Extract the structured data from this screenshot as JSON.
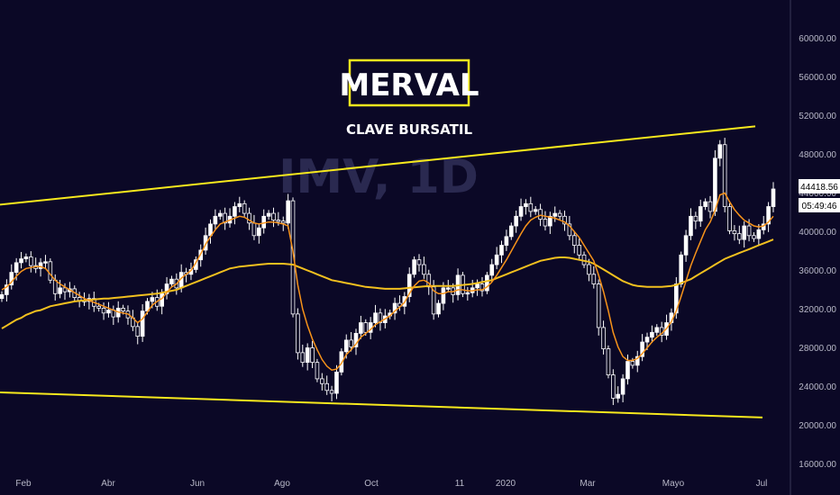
{
  "chart_data": {
    "type": "candlestick",
    "title": "MERVAL",
    "subtitle": "CLAVE BURSATIL",
    "watermark": "IMV, 1D",
    "current_price_label": "44418.56",
    "countdown_label": "05:49:46",
    "y_ticks": [
      "60000.00",
      "56000.00",
      "52000.00",
      "48000.00",
      "44000.00",
      "40000.00",
      "36000.00",
      "32000.00",
      "28000.00",
      "24000.00",
      "20000.00",
      "16000.00"
    ],
    "ylim": [
      16000,
      62000
    ],
    "x_ticks": [
      "Feb",
      "Abr",
      "Jun",
      "Ago",
      "Oct",
      "11",
      "2020",
      "Mar",
      "Mayo",
      "Jul"
    ],
    "grid": false,
    "colors": {
      "background": "#0b0826",
      "candles": "#ffffff",
      "ma_fast": "#f7931a",
      "ma_slow": "#f2c01f",
      "channel": "#f7e91d",
      "label_bg": "#ffffff"
    },
    "close_series": [
      33500,
      34500,
      35800,
      36800,
      37200,
      37400,
      36500,
      36200,
      36800,
      36900,
      35000,
      33600,
      34200,
      33800,
      34100,
      33200,
      32900,
      32800,
      33100,
      32300,
      32100,
      31600,
      31900,
      31200,
      32100,
      31800,
      31100,
      30200,
      29200,
      31800,
      32800,
      33200,
      32300,
      33600,
      34600,
      35100,
      34200,
      35800,
      35600,
      36100,
      37100,
      38100,
      39600,
      40800,
      41600,
      41900,
      40900,
      41600,
      42600,
      42900,
      41900,
      40900,
      39600,
      40400,
      41600,
      41900,
      41200,
      41100,
      40900,
      43200,
      31500,
      27500,
      26500,
      28000,
      26500,
      24800,
      24300,
      23600,
      23300,
      25500,
      27600,
      28800,
      28100,
      29500,
      30600,
      29600,
      30600,
      31600,
      30600,
      31300,
      31600,
      32600,
      32300,
      33300,
      35600,
      37100,
      36600,
      35600,
      34300,
      31500,
      32600,
      34200,
      34200,
      33500,
      35500,
      33600,
      33700,
      34200,
      34600,
      33900,
      35500,
      36600,
      37600,
      38600,
      39500,
      40600,
      41600,
      42600,
      42900,
      42100,
      42300,
      41300,
      40600,
      41600,
      41900,
      41600,
      40800,
      39600,
      38600,
      37600,
      36600,
      35600,
      34600,
      30100,
      27900,
      25200,
      22800,
      23200,
      24800,
      26600,
      26200,
      27100,
      28600,
      29100,
      29600,
      30100,
      29300,
      30600,
      31600,
      34600,
      37600,
      39600,
      41600,
      41100,
      42600,
      43100,
      42100,
      47600,
      49000,
      42600,
      40100,
      39800,
      39200,
      40600,
      39600,
      39300,
      40200,
      40800,
      42600,
      44418
    ],
    "ma_fast": [
      34000,
      34300,
      34800,
      35400,
      35900,
      36200,
      36300,
      36400,
      36400,
      36200,
      35600,
      35000,
      34600,
      34300,
      34000,
      33700,
      33400,
      33100,
      32900,
      32700,
      32500,
      32300,
      32100,
      31900,
      31700,
      31600,
      31500,
      31100,
      30600,
      31000,
      31700,
      32400,
      32800,
      33100,
      33700,
      34300,
      34600,
      35200,
      35600,
      36000,
      36800,
      37700,
      38700,
      39500,
      40200,
      40800,
      41000,
      41200,
      41400,
      41600,
      41500,
      41200,
      40900,
      40800,
      40900,
      41000,
      41000,
      40900,
      40800,
      40600,
      38000,
      34500,
      32000,
      30300,
      28900,
      27800,
      26800,
      26100,
      25700,
      25800,
      26400,
      27300,
      27800,
      28400,
      29100,
      29500,
      29900,
      30400,
      30700,
      31000,
      31300,
      31800,
      32200,
      32700,
      33600,
      34400,
      34900,
      35000,
      34700,
      33900,
      33600,
      33600,
      33800,
      33800,
      34000,
      34000,
      33900,
      33900,
      34000,
      34000,
      34300,
      34800,
      35500,
      36300,
      37100,
      38000,
      38900,
      39800,
      40600,
      41200,
      41500,
      41700,
      41600,
      41500,
      41400,
      41200,
      41000,
      40600,
      40000,
      39400,
      38600,
      37800,
      37000,
      35500,
      33800,
      31800,
      29600,
      28100,
      27100,
      26700,
      26700,
      26900,
      27400,
      28000,
      28600,
      29100,
      29500,
      30000,
      30700,
      31800,
      33300,
      34900,
      36500,
      37800,
      39000,
      40200,
      41000,
      42200,
      43800,
      44000,
      43100,
      42300,
      41700,
      41200,
      40900,
      40600,
      40500,
      40600,
      41000,
      41600
    ],
    "ma_slow": [
      30000,
      30300,
      30600,
      30900,
      31100,
      31400,
      31600,
      31800,
      31900,
      32100,
      32300,
      32400,
      32500,
      32600,
      32700,
      32800,
      32850,
      32900,
      32950,
      33000,
      33050,
      33100,
      33100,
      33150,
      33200,
      33250,
      33300,
      33350,
      33400,
      33450,
      33500,
      33550,
      33600,
      33700,
      33800,
      33900,
      34000,
      34200,
      34400,
      34600,
      34800,
      35000,
      35200,
      35400,
      35600,
      35800,
      36000,
      36200,
      36300,
      36400,
      36450,
      36500,
      36550,
      36600,
      36650,
      36700,
      36700,
      36700,
      36700,
      36650,
      36600,
      36400,
      36200,
      36000,
      35800,
      35600,
      35400,
      35200,
      35000,
      34900,
      34800,
      34700,
      34600,
      34500,
      34400,
      34300,
      34250,
      34200,
      34150,
      34100,
      34100,
      34100,
      34100,
      34150,
      34200,
      34250,
      34300,
      34350,
      34400,
      34400,
      34400,
      34400,
      34400,
      34400,
      34450,
      34500,
      34550,
      34600,
      34700,
      34800,
      34900,
      35000,
      35200,
      35400,
      35600,
      35800,
      36000,
      36200,
      36400,
      36600,
      36800,
      37000,
      37100,
      37200,
      37300,
      37350,
      37350,
      37300,
      37200,
      37100,
      37000,
      36900,
      36700,
      36400,
      36100,
      35800,
      35500,
      35200,
      34900,
      34700,
      34500,
      34400,
      34350,
      34300,
      34300,
      34300,
      34300,
      34350,
      34400,
      34500,
      34700,
      34900,
      35100,
      35400,
      35700,
      36000,
      36300,
      36600,
      36900,
      37200,
      37400,
      37600,
      37800,
      38000,
      38200,
      38400,
      38600,
      38800,
      39000,
      39200
    ],
    "channel_upper": {
      "start": [
        "2019-01-01",
        42800
      ],
      "end": [
        "2020-07-01",
        50900
      ]
    },
    "channel_lower": {
      "start": [
        "2019-01-01",
        23400
      ],
      "end": [
        "2020-07-01",
        20800
      ]
    }
  }
}
